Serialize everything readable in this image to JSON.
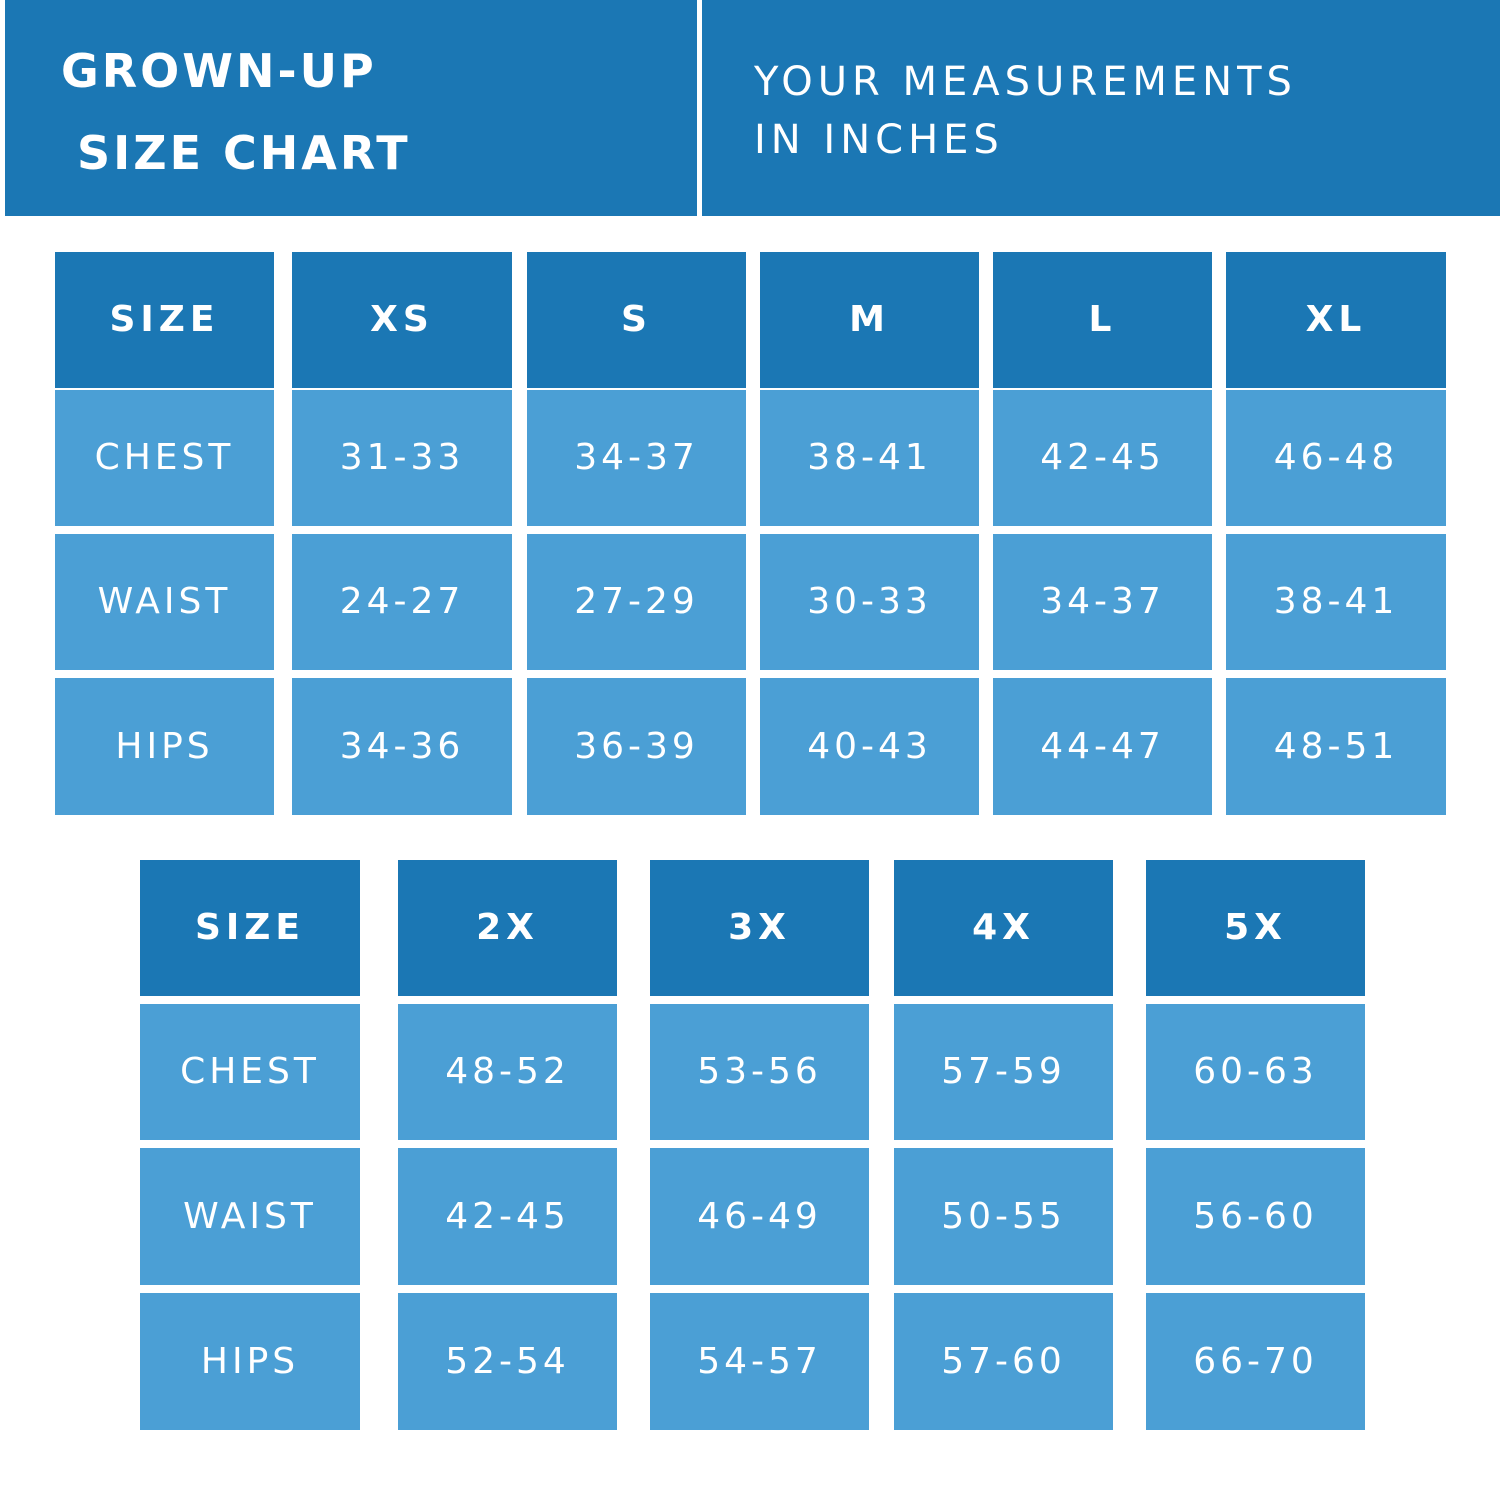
{
  "header": {
    "title_line1": "GROWN-UP",
    "title_line2": "SIZE CHART",
    "subtitle_line1": "YOUR MEASUREMENTS",
    "subtitle_line2": "IN INCHES"
  },
  "colors": {
    "header_blue": "#1b77b4",
    "cell_blue": "#4b9fd5",
    "text": "#ffffff"
  },
  "tables": [
    {
      "headers": [
        "SIZE",
        "XS",
        "S",
        "M",
        "L",
        "XL"
      ],
      "rows": [
        {
          "label": "CHEST",
          "values": [
            "31-33",
            "34-37",
            "38-41",
            "42-45",
            "46-48"
          ]
        },
        {
          "label": "WAIST",
          "values": [
            "24-27",
            "27-29",
            "30-33",
            "34-37",
            "38-41"
          ]
        },
        {
          "label": "HIPS",
          "values": [
            "34-36",
            "36-39",
            "40-43",
            "44-47",
            "48-51"
          ]
        }
      ]
    },
    {
      "headers": [
        "SIZE",
        "2X",
        "3X",
        "4X",
        "5X"
      ],
      "rows": [
        {
          "label": "CHEST",
          "values": [
            "48-52",
            "53-56",
            "57-59",
            "60-63"
          ]
        },
        {
          "label": "WAIST",
          "values": [
            "42-45",
            "46-49",
            "50-55",
            "56-60"
          ]
        },
        {
          "label": "HIPS",
          "values": [
            "52-54",
            "54-57",
            "57-60",
            "66-70"
          ]
        }
      ]
    }
  ]
}
